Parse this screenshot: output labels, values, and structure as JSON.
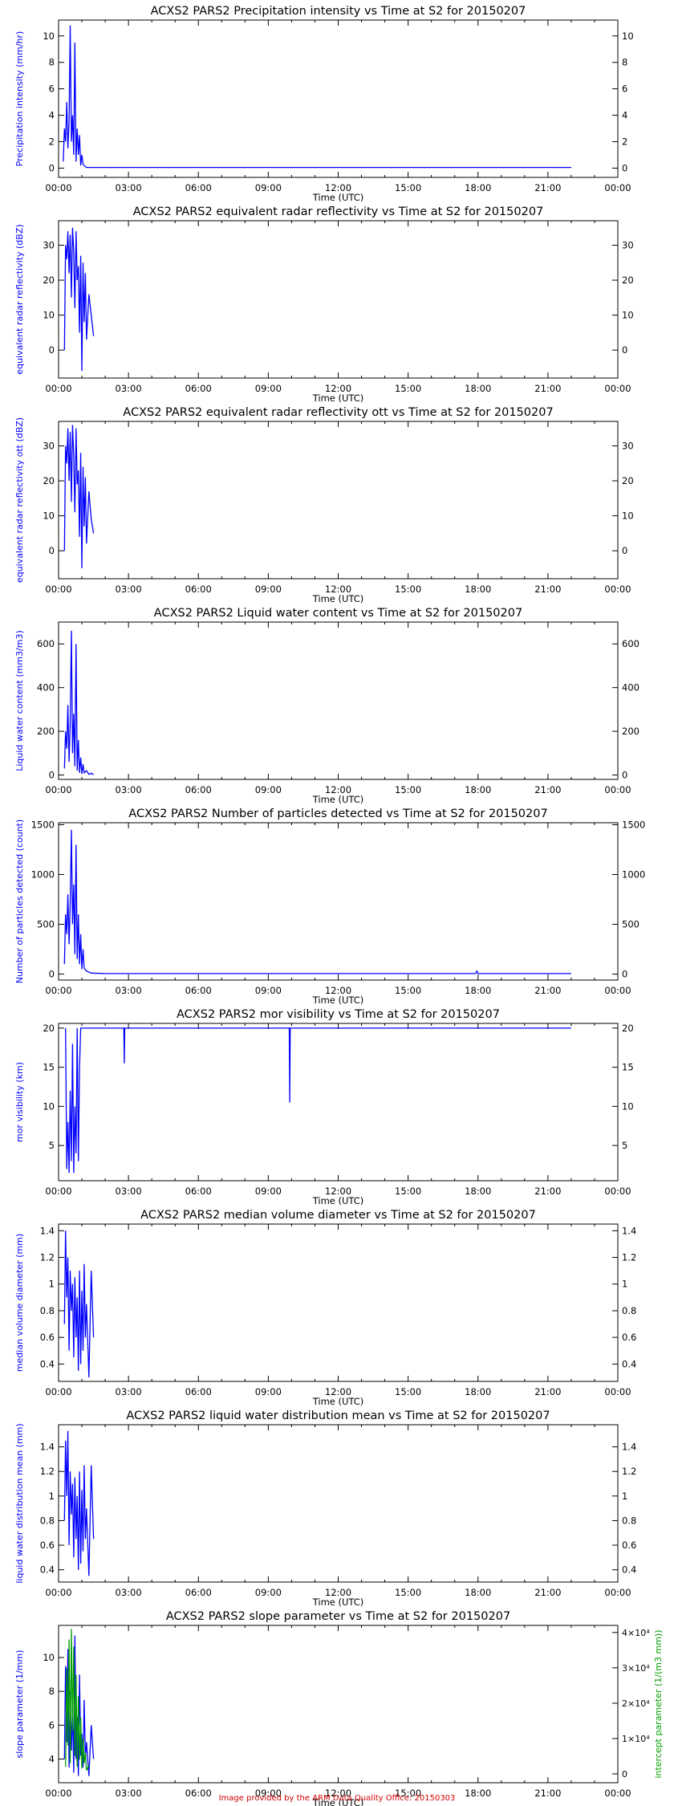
{
  "footer": "Image provided by the ARM Data Quality Office: 20150303",
  "colors": {
    "primary": "#0000ff",
    "secondary": "#00a000",
    "axis": "#000000",
    "title": "#000000"
  },
  "chart_data": [
    {
      "type": "line",
      "title": "ACXS2 PARS2 Precipitation intensity vs Time at S2 for 20150207",
      "xlabel": "Time (UTC)",
      "ylabel": "Precipitation intensity (mm/hr)",
      "x_ticks": [
        "00:00",
        "03:00",
        "06:00",
        "09:00",
        "12:00",
        "15:00",
        "18:00",
        "21:00",
        "00:00"
      ],
      "xlim": [
        0,
        24
      ],
      "ylim": [
        -0.7,
        11.2
      ],
      "y_ticks": [
        0,
        2,
        4,
        6,
        8,
        10
      ],
      "right_ticks": [
        0,
        2,
        4,
        6,
        8,
        10
      ],
      "series": [
        {
          "color": "#0000ff",
          "x": [
            0.2,
            0.25,
            0.3,
            0.35,
            0.4,
            0.45,
            0.5,
            0.55,
            0.6,
            0.65,
            0.7,
            0.75,
            0.8,
            0.85,
            0.9,
            0.95,
            1.0,
            1.05,
            1.1,
            1.2,
            1.4,
            2.0,
            5.0,
            10.0,
            15.0,
            20.0,
            22.0
          ],
          "y": [
            0.5,
            3.0,
            2.0,
            5.0,
            1.5,
            3.5,
            10.8,
            2.0,
            4.0,
            1.0,
            9.5,
            0.5,
            3.0,
            1.0,
            2.5,
            0.2,
            1.0,
            0.3,
            0.2,
            0.05,
            0.05,
            0.05,
            0.05,
            0.05,
            0.05,
            0.05,
            0.05
          ]
        }
      ]
    },
    {
      "type": "line",
      "title": "ACXS2 PARS2 equivalent radar reflectivity vs Time at S2 for 20150207",
      "xlabel": "Time (UTC)",
      "ylabel": "equivalent radar reflectivity (dBZ)",
      "x_ticks": [
        "00:00",
        "03:00",
        "06:00",
        "09:00",
        "12:00",
        "15:00",
        "18:00",
        "21:00",
        "00:00"
      ],
      "xlim": [
        0,
        24
      ],
      "ylim": [
        -8,
        37
      ],
      "y_ticks": [
        0,
        10,
        20,
        30
      ],
      "right_ticks": [
        0,
        10,
        20,
        30
      ],
      "series": [
        {
          "color": "#0000ff",
          "x": [
            0.25,
            0.3,
            0.35,
            0.4,
            0.45,
            0.5,
            0.55,
            0.6,
            0.65,
            0.7,
            0.75,
            0.8,
            0.85,
            0.9,
            0.95,
            1.0,
            1.05,
            1.1,
            1.15,
            1.2,
            1.3,
            1.4,
            1.5
          ],
          "y": [
            0,
            30,
            26,
            34,
            22,
            33,
            15,
            35,
            28,
            12,
            34,
            20,
            24,
            5,
            27,
            -6,
            25,
            8,
            22,
            3,
            16,
            10,
            4
          ]
        }
      ]
    },
    {
      "type": "line",
      "title": "ACXS2 PARS2 equivalent radar reflectivity ott vs Time at S2 for 20150207",
      "xlabel": "Time (UTC)",
      "ylabel": "equivalent radar reflectivity ott (dBZ)",
      "x_ticks": [
        "00:00",
        "03:00",
        "06:00",
        "09:00",
        "12:00",
        "15:00",
        "18:00",
        "21:00",
        "00:00"
      ],
      "xlim": [
        0,
        24
      ],
      "ylim": [
        -8,
        37
      ],
      "y_ticks": [
        0,
        10,
        20,
        30
      ],
      "right_ticks": [
        0,
        10,
        20,
        30
      ],
      "series": [
        {
          "color": "#0000ff",
          "x": [
            0.25,
            0.3,
            0.35,
            0.4,
            0.45,
            0.5,
            0.55,
            0.6,
            0.65,
            0.7,
            0.75,
            0.8,
            0.85,
            0.9,
            0.95,
            1.0,
            1.05,
            1.1,
            1.15,
            1.2,
            1.3,
            1.4,
            1.5
          ],
          "y": [
            0,
            30,
            25,
            35,
            20,
            34,
            14,
            36,
            27,
            11,
            35,
            19,
            23,
            4,
            28,
            -5,
            24,
            7,
            21,
            2,
            17,
            9,
            5
          ]
        }
      ]
    },
    {
      "type": "line",
      "title": "ACXS2 PARS2 Liquid water content vs Time at S2 for 20150207",
      "xlabel": "Time (UTC)",
      "ylabel": "Liquid water content (mm3/m3)",
      "x_ticks": [
        "00:00",
        "03:00",
        "06:00",
        "09:00",
        "12:00",
        "15:00",
        "18:00",
        "21:00",
        "00:00"
      ],
      "xlim": [
        0,
        24
      ],
      "ylim": [
        -20,
        700
      ],
      "y_ticks": [
        0,
        200,
        400,
        600
      ],
      "right_ticks": [
        0,
        200,
        400,
        600
      ],
      "series": [
        {
          "color": "#0000ff",
          "x": [
            0.25,
            0.3,
            0.35,
            0.4,
            0.45,
            0.5,
            0.55,
            0.6,
            0.65,
            0.7,
            0.75,
            0.8,
            0.85,
            0.9,
            0.95,
            1.0,
            1.05,
            1.1,
            1.2,
            1.3,
            1.4,
            1.5
          ],
          "y": [
            30,
            200,
            120,
            320,
            60,
            240,
            660,
            100,
            280,
            40,
            600,
            20,
            160,
            10,
            80,
            5,
            50,
            10,
            20,
            3,
            8,
            2
          ]
        }
      ]
    },
    {
      "type": "line",
      "title": "ACXS2 PARS2 Number of particles detected vs Time at S2 for 20150207",
      "xlabel": "Time (UTC)",
      "ylabel": "Number of particles detected (count)",
      "x_ticks": [
        "00:00",
        "03:00",
        "06:00",
        "09:00",
        "12:00",
        "15:00",
        "18:00",
        "21:00",
        "00:00"
      ],
      "xlim": [
        0,
        24
      ],
      "ylim": [
        -60,
        1520
      ],
      "y_ticks": [
        0,
        500,
        1000,
        1500
      ],
      "right_ticks": [
        0,
        500,
        1000,
        1500
      ],
      "series": [
        {
          "color": "#0000ff",
          "x": [
            0.25,
            0.3,
            0.35,
            0.4,
            0.45,
            0.5,
            0.55,
            0.6,
            0.65,
            0.7,
            0.75,
            0.8,
            0.85,
            0.9,
            0.95,
            1.0,
            1.05,
            1.1,
            1.2,
            1.4,
            2.0,
            5.0,
            10.0,
            15.0,
            17.9,
            17.95,
            18.0,
            22.0
          ],
          "y": [
            100,
            600,
            400,
            800,
            300,
            700,
            1450,
            500,
            900,
            200,
            1300,
            150,
            600,
            100,
            400,
            50,
            250,
            60,
            30,
            10,
            5,
            5,
            5,
            5,
            5,
            30,
            5,
            5
          ]
        }
      ]
    },
    {
      "type": "line",
      "title": "ACXS2 PARS2 mor visibility vs Time at S2 for 20150207",
      "xlabel": "Time (UTC)",
      "ylabel": "mor visibility (km)",
      "x_ticks": [
        "00:00",
        "03:00",
        "06:00",
        "09:00",
        "12:00",
        "15:00",
        "18:00",
        "21:00",
        "00:00"
      ],
      "xlim": [
        0,
        24
      ],
      "ylim": [
        0.5,
        20.6
      ],
      "y_ticks": [
        5,
        10,
        15,
        20
      ],
      "right_ticks": [
        5,
        10,
        15,
        20
      ],
      "series": [
        {
          "color": "#0000ff",
          "x": [
            0.3,
            0.35,
            0.4,
            0.45,
            0.5,
            0.55,
            0.6,
            0.65,
            0.7,
            0.75,
            0.8,
            0.85,
            0.9,
            0.95,
            1.0,
            1.1,
            2.0,
            2.8,
            2.82,
            2.84,
            3.0,
            6.0,
            9.9,
            9.92,
            9.94,
            10.0,
            15.0,
            20.0,
            22.0
          ],
          "y": [
            20,
            2,
            8,
            1.5,
            12,
            3,
            18,
            1.5,
            10,
            4,
            20,
            3,
            15,
            20,
            20,
            20,
            20,
            20,
            15.5,
            20,
            20,
            20,
            20,
            10.5,
            20,
            20,
            20,
            20,
            20
          ]
        }
      ]
    },
    {
      "type": "line",
      "title": "ACXS2 PARS2 median volume diameter vs Time at S2 for 20150207",
      "xlabel": "Time (UTC)",
      "ylabel": "median volume diameter (mm)",
      "x_ticks": [
        "00:00",
        "03:00",
        "06:00",
        "09:00",
        "12:00",
        "15:00",
        "18:00",
        "21:00",
        "00:00"
      ],
      "xlim": [
        0,
        24
      ],
      "ylim": [
        0.27,
        1.45
      ],
      "y_ticks": [
        0.4,
        0.6,
        0.8,
        1.0,
        1.2,
        1.4
      ],
      "right_ticks": [
        0.4,
        0.6,
        0.8,
        1.0,
        1.2,
        1.4
      ],
      "series": [
        {
          "color": "#0000ff",
          "x": [
            0.25,
            0.3,
            0.35,
            0.4,
            0.45,
            0.5,
            0.55,
            0.6,
            0.65,
            0.7,
            0.75,
            0.8,
            0.85,
            0.9,
            0.95,
            1.0,
            1.05,
            1.1,
            1.15,
            1.2,
            1.3,
            1.4,
            1.5
          ],
          "y": [
            0.7,
            1.4,
            0.9,
            1.2,
            0.5,
            1.1,
            0.8,
            1.0,
            0.45,
            1.05,
            0.6,
            0.9,
            0.35,
            1.1,
            0.4,
            0.95,
            0.5,
            1.15,
            0.6,
            0.85,
            0.3,
            1.1,
            0.6
          ]
        }
      ]
    },
    {
      "type": "line",
      "title": "ACXS2 PARS2 liquid water distribution mean vs Time at S2 for 20150207",
      "xlabel": "Time (UTC)",
      "ylabel": "liquid water distribution mean (mm)",
      "x_ticks": [
        "00:00",
        "03:00",
        "06:00",
        "09:00",
        "12:00",
        "15:00",
        "18:00",
        "21:00",
        "00:00"
      ],
      "xlim": [
        0,
        24
      ],
      "ylim": [
        0.3,
        1.58
      ],
      "y_ticks": [
        0.4,
        0.6,
        0.8,
        1.0,
        1.2,
        1.4
      ],
      "right_ticks": [
        0.4,
        0.6,
        0.8,
        1.0,
        1.2,
        1.4
      ],
      "series": [
        {
          "color": "#0000ff",
          "x": [
            0.25,
            0.3,
            0.35,
            0.4,
            0.45,
            0.5,
            0.55,
            0.6,
            0.65,
            0.7,
            0.75,
            0.8,
            0.85,
            0.9,
            0.95,
            1.0,
            1.05,
            1.1,
            1.15,
            1.2,
            1.3,
            1.4,
            1.5
          ],
          "y": [
            0.8,
            1.45,
            1.0,
            1.53,
            0.6,
            1.2,
            0.85,
            1.1,
            0.5,
            1.15,
            0.65,
            1.0,
            0.4,
            1.2,
            0.45,
            1.05,
            0.55,
            1.25,
            0.65,
            0.9,
            0.35,
            1.25,
            0.65
          ]
        }
      ]
    },
    {
      "type": "line",
      "title": "ACXS2 PARS2 slope parameter vs Time at S2 for 20150207",
      "xlabel": "Time (UTC)",
      "ylabel": "slope parameter (1/mm)",
      "right_label": "intercept parameter (1/(m3 mm))",
      "x_ticks": [
        "00:00",
        "03:00",
        "06:00",
        "09:00",
        "12:00",
        "15:00",
        "18:00",
        "21:00",
        "00:00"
      ],
      "xlim": [
        0,
        24
      ],
      "ylim": [
        2.6,
        11.9
      ],
      "y_ticks": [
        4,
        6,
        8,
        10
      ],
      "right_ticks": [
        "0",
        "1×10⁴",
        "2×10⁴",
        "3×10⁴",
        "4×10⁴"
      ],
      "right_tick_values": [
        0,
        10000,
        20000,
        30000,
        40000
      ],
      "right_ylim": [
        -2500,
        42000
      ],
      "series": [
        {
          "name": "slope parameter",
          "color": "#0000ff",
          "x": [
            0.25,
            0.3,
            0.35,
            0.4,
            0.45,
            0.5,
            0.55,
            0.6,
            0.65,
            0.7,
            0.75,
            0.8,
            0.85,
            0.9,
            0.95,
            1.0,
            1.05,
            1.1,
            1.15,
            1.2,
            1.3,
            1.4,
            1.5
          ],
          "y": [
            4.0,
            9.5,
            5.0,
            10.5,
            3.5,
            8.0,
            4.5,
            7.0,
            3.2,
            11.3,
            4.0,
            6.5,
            3.0,
            9.0,
            4.2,
            5.5,
            3.5,
            7.5,
            4.0,
            5.0,
            3.0,
            6.0,
            4.0
          ]
        },
        {
          "name": "intercept parameter",
          "color": "#00a000",
          "axis": "right",
          "x": [
            0.3,
            0.35,
            0.4,
            0.45,
            0.5,
            0.55,
            0.6,
            0.65,
            0.7,
            0.75,
            0.8,
            0.85,
            0.9,
            0.95,
            1.0,
            1.05,
            1.1,
            1.15,
            1.2,
            1.3
          ],
          "y": [
            2000,
            30000,
            8000,
            38000,
            3000,
            41000,
            12000,
            36000,
            5000,
            28000,
            2000,
            22000,
            4000,
            16000,
            1500,
            10000,
            3000,
            6000,
            1000,
            2500
          ]
        }
      ]
    }
  ]
}
